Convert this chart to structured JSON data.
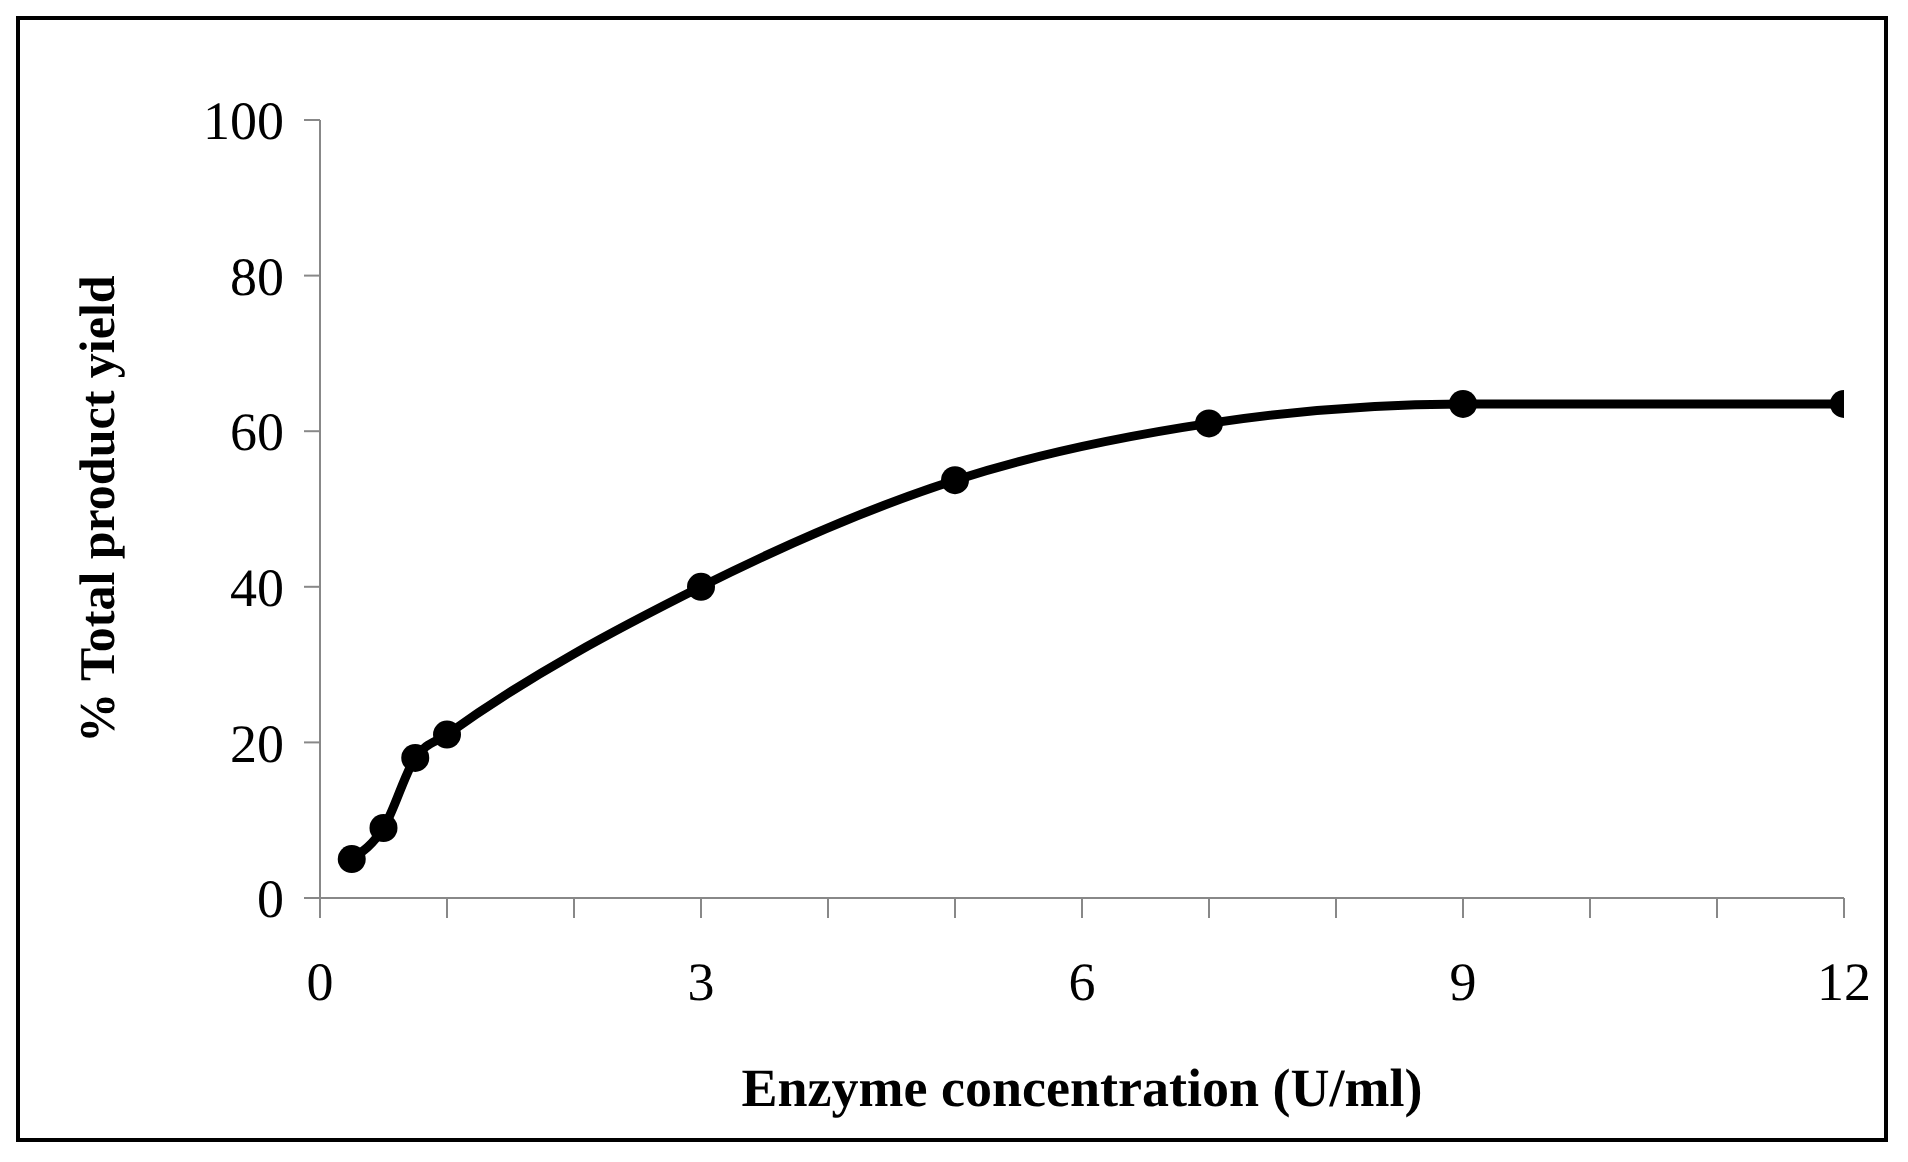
{
  "chart_data": {
    "type": "line",
    "xlabel": "Enzyme concentration (U/ml)",
    "ylabel": "% Total product yield",
    "x": [
      0.25,
      0.5,
      0.75,
      1,
      3,
      5,
      7,
      9,
      12
    ],
    "series": [
      {
        "color": "#000000",
        "values": [
          5,
          9,
          18,
          21,
          40,
          53.7,
          61,
          63.5,
          63.5
        ]
      }
    ],
    "xlim": [
      0,
      12
    ],
    "ylim": [
      0,
      100
    ],
    "xticks": [
      0,
      {
        "value": 1,
        "label": null
      },
      {
        "value": 2,
        "label": null
      },
      3,
      {
        "value": 4,
        "label": null
      },
      {
        "value": 5,
        "label": null
      },
      6,
      {
        "value": 7,
        "label": null
      },
      {
        "value": 8,
        "label": null
      },
      9,
      {
        "value": 10,
        "label": null
      },
      {
        "value": 11,
        "label": null
      },
      12
    ],
    "yticks": [
      0,
      20,
      40,
      60,
      80,
      100
    ],
    "grid": false,
    "legend": false,
    "marker": "circle",
    "line_style": "solid"
  }
}
